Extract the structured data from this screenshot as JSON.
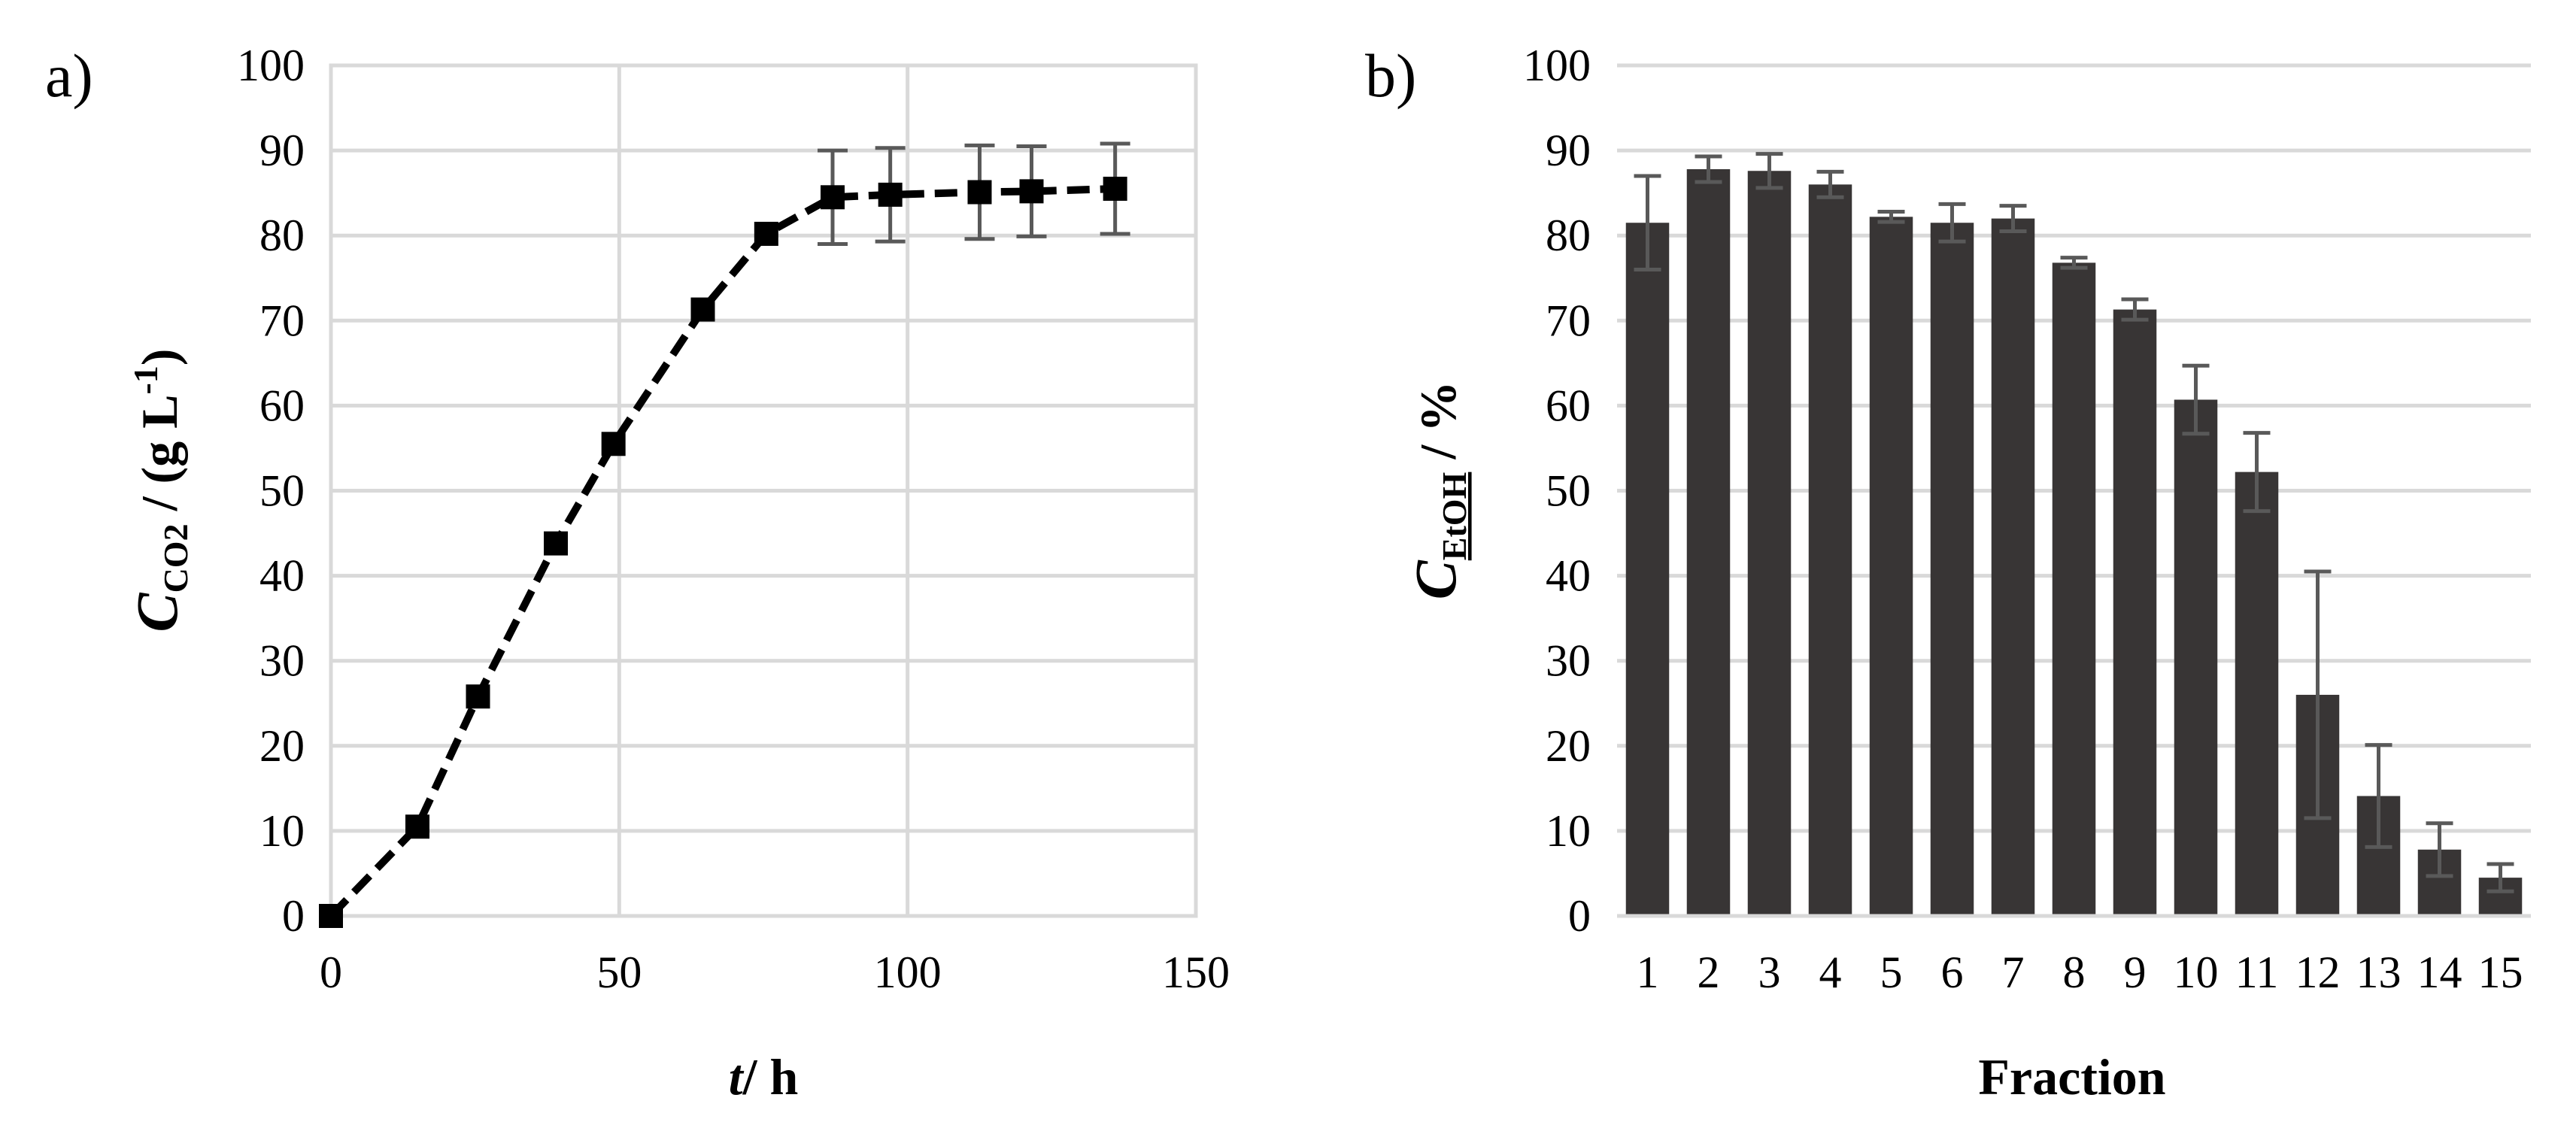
{
  "colors": {
    "grid": "#d9d9d9",
    "line": "#000000",
    "bar": "#383535",
    "errorbar": "#595959",
    "text": "#000000"
  },
  "chart_data": [
    {
      "panel": "a)",
      "type": "line",
      "title": "",
      "xlabel": {
        "italic": "t",
        "text": "/ h"
      },
      "ylabel": {
        "italic": "C",
        "subscript": "CO2",
        "text": " / (g L",
        "superscript": "-1",
        "tail": ")"
      },
      "xlim": [
        0,
        150
      ],
      "ylim": [
        0,
        100
      ],
      "xticks": [
        0,
        50,
        100,
        150
      ],
      "yticks": [
        0,
        10,
        20,
        30,
        40,
        50,
        60,
        70,
        80,
        90,
        100
      ],
      "grid": true,
      "line_style": "dashed",
      "marker": "square",
      "series": [
        {
          "name": "CO2",
          "x": [
            0,
            15,
            25.5,
            39,
            49,
            64.5,
            75.5,
            87,
            97,
            112.5,
            121.5,
            136
          ],
          "y": [
            0,
            10.5,
            25.8,
            43.8,
            55.5,
            71.3,
            80.2,
            84.5,
            84.8,
            85.1,
            85.2,
            85.5
          ],
          "err": [
            0,
            0,
            0,
            0,
            0,
            0,
            0,
            5.5,
            5.5,
            5.5,
            5.3,
            5.3
          ]
        }
      ]
    },
    {
      "panel": "b)",
      "type": "bar",
      "title": "",
      "xlabel": "Fraction",
      "ylabel": {
        "italic": "C",
        "subscript": "EtOH",
        "text": " / %"
      },
      "ylim": [
        0,
        100
      ],
      "yticks": [
        0,
        10,
        20,
        30,
        40,
        50,
        60,
        70,
        80,
        90,
        100
      ],
      "grid": true,
      "categories": [
        "1",
        "2",
        "3",
        "4",
        "5",
        "6",
        "7",
        "8",
        "9",
        "10",
        "11",
        "12",
        "13",
        "14",
        "15"
      ],
      "values": [
        81.5,
        87.8,
        87.6,
        86,
        82.2,
        81.5,
        82,
        76.8,
        71.3,
        60.7,
        52.2,
        26,
        14.1,
        7.8,
        4.5
      ],
      "err": [
        5.5,
        1.5,
        2,
        1.5,
        0.6,
        2.2,
        1.5,
        0.6,
        1.2,
        4,
        4.6,
        14.5,
        6,
        3.1,
        1.6
      ]
    }
  ]
}
